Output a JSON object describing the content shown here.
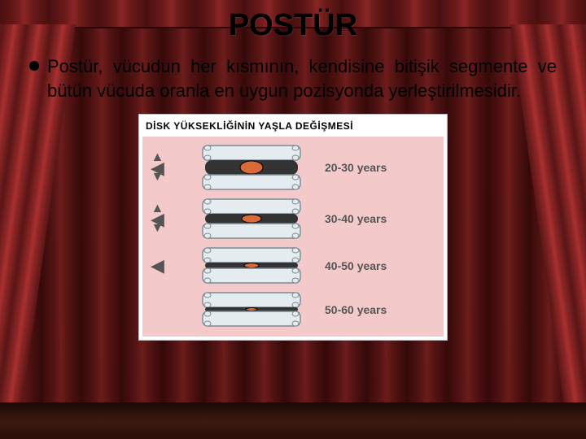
{
  "slide": {
    "title": "POSTÜR",
    "bullet": "Postür, vücudun her kısmının, kendisine bitişik segmente ve bütün  vücuda oranla en uygun pozisyonda yerleştirilmesidir."
  },
  "figure": {
    "type": "infographic",
    "title": "DİSK YÜKSEKLİĞİNİN YAŞLA DEĞİŞMESİ",
    "background_color": "#f4c9c9",
    "vertebra_color": "#e5ecf0",
    "vertebra_stroke": "#7a8a95",
    "disc_outer_color": "#333333",
    "disc_core_color": "#d86a3a",
    "arrow_color": "#555555",
    "label_color": "#555555",
    "label_fontsize": 14,
    "rows": [
      {
        "label": "20-30 years",
        "disc_height": 18,
        "core_rx": 14,
        "core_ry": 8,
        "arrows": {
          "up": true,
          "down": true,
          "out": true
        }
      },
      {
        "label": "30-40 years",
        "disc_height": 12,
        "core_rx": 12,
        "core_ry": 5,
        "arrows": {
          "up": true,
          "down": true,
          "out": true
        }
      },
      {
        "label": "40-50 years",
        "disc_height": 7,
        "core_rx": 9,
        "core_ry": 3,
        "arrows": {
          "up": false,
          "down": false,
          "out": true
        }
      },
      {
        "label": "50-60 years",
        "disc_height": 5,
        "core_rx": 7,
        "core_ry": 2,
        "arrows": {
          "up": false,
          "down": false,
          "out": false
        }
      }
    ]
  },
  "colors": {
    "title_color": "#000000",
    "text_color": "#000000"
  }
}
